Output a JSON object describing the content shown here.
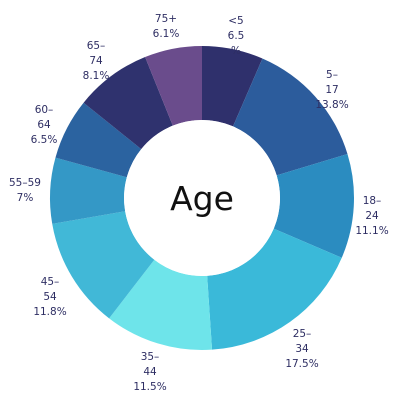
{
  "chart_data": {
    "type": "donut",
    "title": "Age",
    "unit": "%",
    "slices": [
      {
        "category": "<5",
        "value": 6.5,
        "value_label": "6.5%",
        "color": "#2f306c"
      },
      {
        "category": "5–17",
        "value": 13.8,
        "value_label": "13.8%",
        "color": "#2c5c9c"
      },
      {
        "category": "18–24",
        "value": 11.1,
        "value_label": "11.1%",
        "color": "#2b8cc0"
      },
      {
        "category": "25–34",
        "value": 17.5,
        "value_label": "17.5%",
        "color": "#3ab9d9"
      },
      {
        "category": "35–44",
        "value": 11.5,
        "value_label": "11.5%",
        "color": "#6ee4ea"
      },
      {
        "category": "45–54",
        "value": 11.8,
        "value_label": "11.8%",
        "color": "#41b8d7"
      },
      {
        "category": "55–59",
        "value": 7,
        "value_label": "7%",
        "color": "#3498c6"
      },
      {
        "category": "60–64",
        "value": 6.5,
        "value_label": "6.5%",
        "color": "#2b63a0"
      },
      {
        "category": "65–74",
        "value": 8.1,
        "value_label": "8.1%",
        "color": "#2f326e"
      },
      {
        "category": "75+",
        "value": 6.1,
        "value_label": "6.1%",
        "color": "#6a4c8c"
      }
    ]
  }
}
